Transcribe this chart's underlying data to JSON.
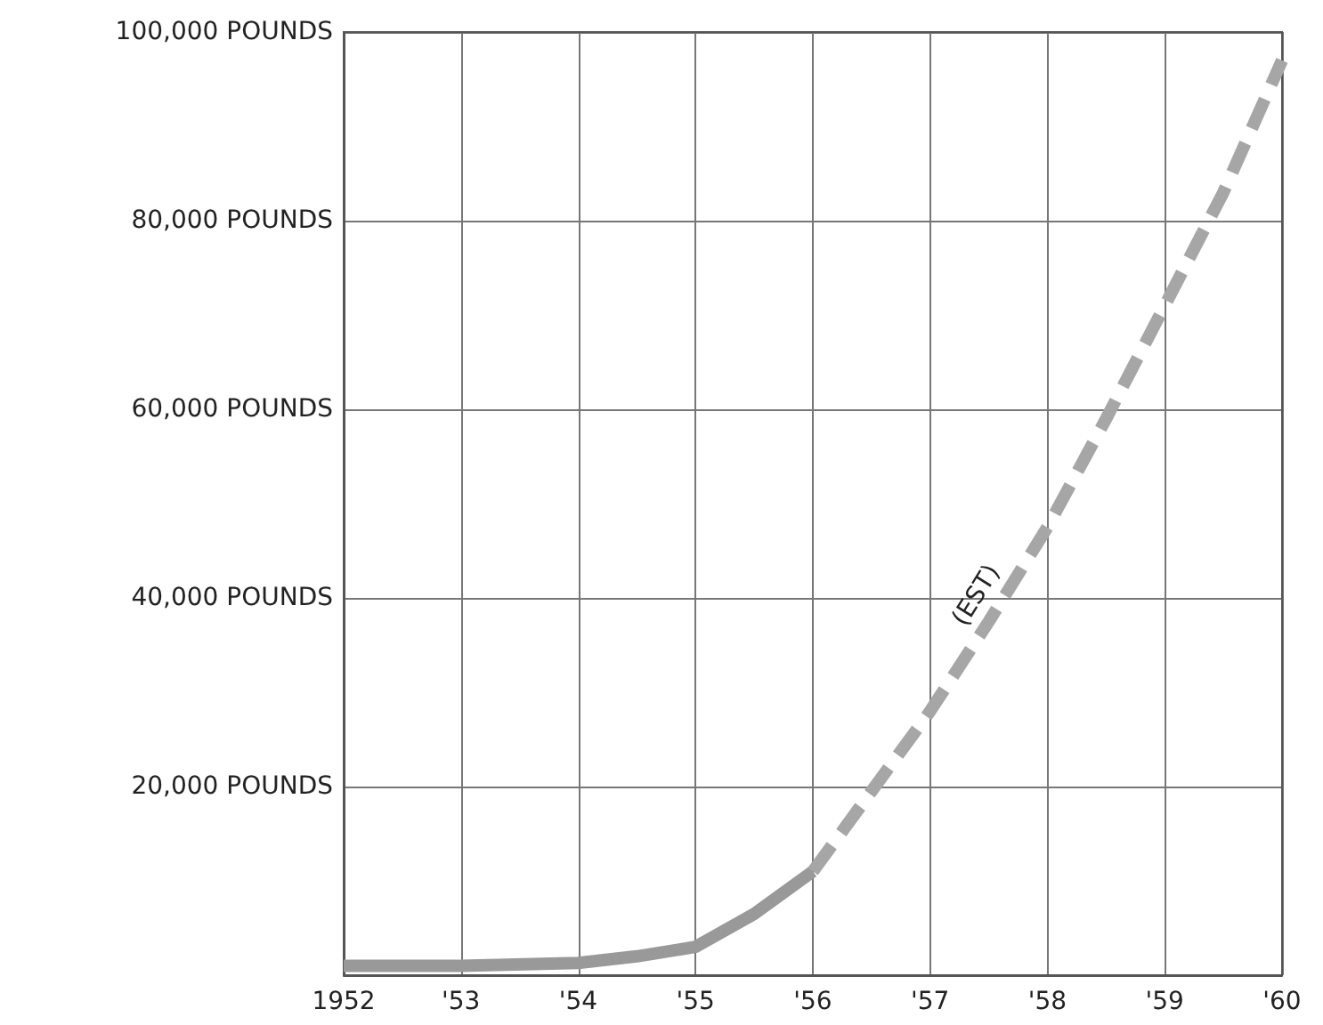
{
  "chart_data": {
    "type": "line",
    "series": [
      {
        "color": "#999999",
        "line_style": "solid",
        "x": [
          1952,
          1953,
          1954,
          1954.5,
          1955,
          1955.5,
          1956
        ],
        "values": [
          1000,
          1000,
          1300,
          2000,
          3000,
          6500,
          11000
        ]
      },
      {
        "color": "#a6a6a6",
        "line_style": "dashed",
        "x": [
          1956,
          1956.5,
          1957,
          1957.5,
          1958,
          1958.5,
          1959,
          1959.5,
          1960
        ],
        "values": [
          11000,
          19500,
          28000,
          37500,
          47500,
          59000,
          71000,
          83000,
          97000
        ]
      }
    ],
    "annotations": [
      {
        "text": "(EST)",
        "x": 1957.7,
        "y": 41000
      }
    ],
    "xlim": [
      1952,
      1960
    ],
    "xticks": [
      {
        "value": 1952,
        "label": "1952"
      },
      {
        "value": 1953,
        "label": "'53"
      },
      {
        "value": 1954,
        "label": "'54"
      },
      {
        "value": 1955,
        "label": "'55"
      },
      {
        "value": 1956,
        "label": "'56"
      },
      {
        "value": 1957,
        "label": "'57"
      },
      {
        "value": 1958,
        "label": "'58"
      },
      {
        "value": 1959,
        "label": "'59"
      },
      {
        "value": 1960,
        "label": "'60"
      }
    ],
    "ylim": [
      0,
      100000
    ],
    "yticks": [
      {
        "value": 0,
        "label": null
      },
      {
        "value": 20000,
        "label": "20,000 POUNDS"
      },
      {
        "value": 40000,
        "label": "40,000 POUNDS"
      },
      {
        "value": 60000,
        "label": "60,000 POUNDS"
      },
      {
        "value": 80000,
        "label": "80,000 POUNDS"
      },
      {
        "value": 100000,
        "label": "100,000 POUNDS"
      }
    ],
    "grid": true,
    "marker": "none"
  }
}
